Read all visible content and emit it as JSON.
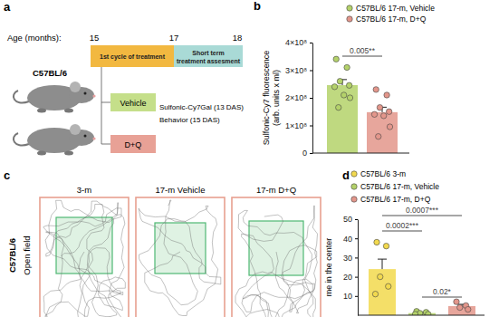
{
  "panel_labels": [
    "a",
    "b",
    "c",
    "d"
  ],
  "panel_a": {
    "axis_label": "Age (months):",
    "ticks": [
      15,
      17,
      18
    ],
    "phases": [
      {
        "label": [
          "1st cycle of treatment"
        ],
        "color": "#f2b840"
      },
      {
        "label": [
          "Short term",
          "treatment assesment"
        ],
        "color": "#a9dad6"
      }
    ],
    "strain": "C57BL/6",
    "groups": [
      {
        "label": "Vehicle",
        "color": "#c5df8a"
      },
      {
        "label": "D+Q",
        "color": "#e8a196"
      }
    ],
    "assessments": [
      "Sulfonic-Cy7Gal (13 DAS)",
      "Behavior (15 DAS)"
    ]
  },
  "panel_c": {
    "row_labels": [
      "C57BL/6",
      "Open field"
    ],
    "columns": [
      "3-m",
      "17-m Vehicle",
      "17-m D+Q"
    ]
  },
  "chart_data": [
    {
      "type": "bar",
      "y_label": [
        "Sulfonic-Cy7 fluorescence",
        "(arb. units x ml)"
      ],
      "categories": [
        "C57BL/6 17-m, Vehicle",
        "C57BL/6 17-m, D+Q"
      ],
      "values": [
        246000000,
        148000000
      ],
      "errors": [
        20000000,
        18000000
      ],
      "points": [
        [
          340000000,
          310000000,
          260000000,
          245000000,
          240000000,
          210000000,
          200000000,
          165000000
        ],
        [
          230000000,
          210000000,
          165000000,
          150000000,
          140000000,
          135000000,
          95000000,
          60000000
        ]
      ],
      "colors": [
        "#b4d26a",
        "#e3968b"
      ],
      "ylim": [
        0,
        400000000
      ],
      "yticks": [
        0,
        {
          "value": 100000000,
          "label": "1×10⁸"
        },
        {
          "value": 200000000,
          "label": "2×10⁸"
        },
        {
          "value": 300000000,
          "label": "3×10⁸"
        },
        {
          "value": 400000000,
          "label": "4×10⁸"
        }
      ],
      "tick_labels": "y",
      "legend": "top right",
      "significance": [
        {
          "groups": [
            0,
            1
          ],
          "label": "0.005**"
        }
      ]
    },
    {
      "type": "bar",
      "y_label": [
        "me in the center"
      ],
      "categories": [
        "C57BL/6 3-m",
        "C57BL/6 17-m, Vehicle",
        "C57BL/6 17-m, D+Q"
      ],
      "values": [
        24,
        1.1,
        4.75
      ],
      "errors": [
        5.2,
        0.3,
        0.9
      ],
      "points": [
        [
          38,
          36,
          20,
          15,
          11
        ],
        [
          2,
          1.5,
          1,
          0.5,
          0.5
        ],
        [
          7,
          5,
          4,
          3
        ]
      ],
      "colors": [
        "#f2d94e",
        "#b4d26a",
        "#e3968b"
      ],
      "ylim": [
        0,
        50
      ],
      "yticks": [
        10,
        20,
        30,
        40,
        50
      ],
      "tick_labels": "y",
      "legend": "top right",
      "significance": [
        {
          "groups": [
            0,
            2
          ],
          "label": "0.0007***"
        },
        {
          "groups": [
            0,
            1
          ],
          "label": "0.0002***"
        },
        {
          "groups": [
            1,
            2
          ],
          "label": "0.02*"
        }
      ]
    }
  ]
}
